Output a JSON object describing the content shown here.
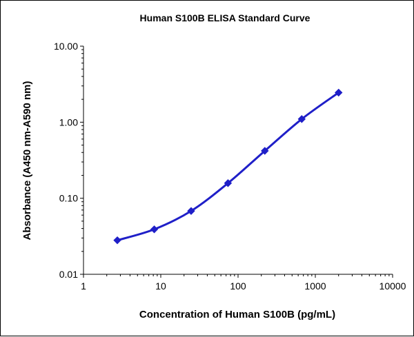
{
  "chart_data": {
    "type": "line",
    "title": "Human S100B ELISA Standard Curve",
    "xlabel": "Concentration of Human S100B (pg/mL)",
    "ylabel": "Absorbance (A450 nm-A590 nm)",
    "x_scale": "log",
    "y_scale": "log",
    "xlim": [
      1,
      10000
    ],
    "ylim": [
      0.01,
      10
    ],
    "x_ticks": [
      1,
      10,
      100,
      1000,
      10000
    ],
    "x_tick_labels": [
      "1",
      "10",
      "100",
      "1000",
      "10000"
    ],
    "y_ticks": [
      0.01,
      0.1,
      1,
      10
    ],
    "y_tick_labels": [
      "0.01",
      "0.10",
      "1.00",
      "10.00"
    ],
    "grid": false,
    "legend": "none",
    "series": [
      {
        "color": "#1f1fc8",
        "marker": "diamond",
        "x": [
          2.74,
          8.23,
          24.7,
          74.1,
          222,
          667,
          2000
        ],
        "y": [
          0.028,
          0.039,
          0.068,
          0.158,
          0.42,
          1.1,
          2.45
        ]
      }
    ]
  }
}
